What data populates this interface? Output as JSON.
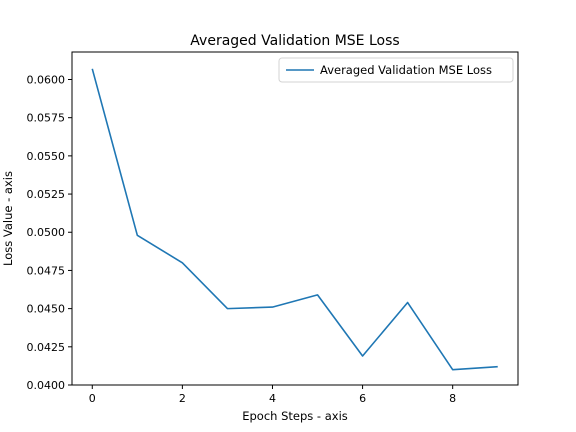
{
  "chart_data": {
    "type": "line",
    "title": "Averaged Validation MSE Loss",
    "xlabel": "Epoch Steps - axis",
    "ylabel": "Loss Value - axis",
    "x": [
      0,
      1,
      2,
      3,
      4,
      5,
      6,
      7,
      8,
      9
    ],
    "series": [
      {
        "name": "Averaged Validation MSE Loss",
        "values": [
          0.0607,
          0.0498,
          0.048,
          0.045,
          0.0451,
          0.0459,
          0.0419,
          0.0454,
          0.041,
          0.0412
        ],
        "color": "#1f77b4"
      }
    ],
    "xlim": [
      -0.45,
      9.45
    ],
    "ylim": [
      0.04,
      0.0618
    ],
    "xticks": [
      0,
      2,
      4,
      6,
      8
    ],
    "xtick_labels": [
      "0",
      "2",
      "4",
      "6",
      "8"
    ],
    "yticks": [
      0.04,
      0.0425,
      0.045,
      0.0475,
      0.05,
      0.0525,
      0.055,
      0.0575,
      0.06
    ],
    "ytick_labels": [
      "0.0400",
      "0.0425",
      "0.0450",
      "0.0475",
      "0.0500",
      "0.0525",
      "0.0550",
      "0.0575",
      "0.0600"
    ],
    "grid": false,
    "legend_position": "top-right"
  }
}
